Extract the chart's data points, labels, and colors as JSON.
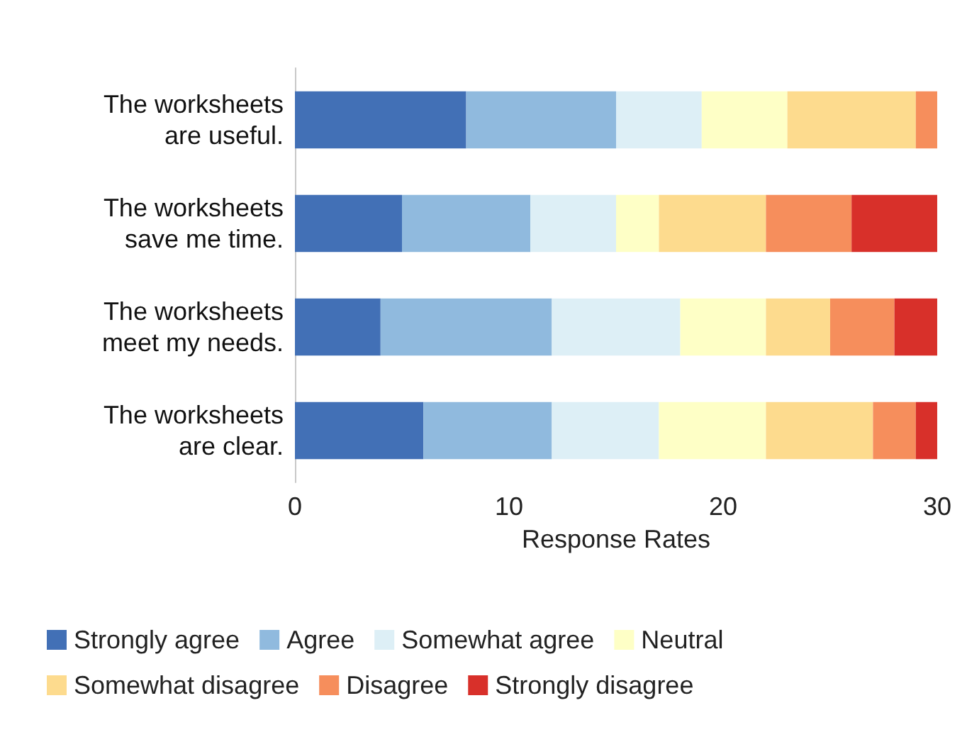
{
  "chart_data": {
    "type": "bar",
    "orientation": "horizontal",
    "stacked": true,
    "xlabel": "Response Rates",
    "categories": [
      "The worksheets\nare useful.",
      "The worksheets\nsave me time.",
      "The worksheets\nmeet my needs.",
      "The worksheets\nare clear."
    ],
    "series": [
      {
        "name": "Strongly agree",
        "color": "#4270b6",
        "values": [
          8,
          5,
          4,
          6
        ]
      },
      {
        "name": "Agree",
        "color": "#90bade",
        "values": [
          7,
          6,
          8,
          6
        ]
      },
      {
        "name": "Somewhat agree",
        "color": "#ddeff6",
        "values": [
          4,
          4,
          6,
          5
        ]
      },
      {
        "name": "Neutral",
        "color": "#feffc6",
        "values": [
          4,
          2,
          4,
          5
        ]
      },
      {
        "name": "Somewhat disagree",
        "color": "#fddb8e",
        "values": [
          6,
          5,
          3,
          5
        ]
      },
      {
        "name": "Disagree",
        "color": "#f68e5c",
        "values": [
          1,
          4,
          3,
          2
        ]
      },
      {
        "name": "Strongly disagree",
        "color": "#d8302a",
        "values": [
          0,
          4,
          2,
          1
        ]
      }
    ],
    "xlim": [
      0,
      30
    ],
    "xticks": [
      0,
      10,
      20,
      30
    ],
    "grid": false,
    "legend": "bottom"
  }
}
